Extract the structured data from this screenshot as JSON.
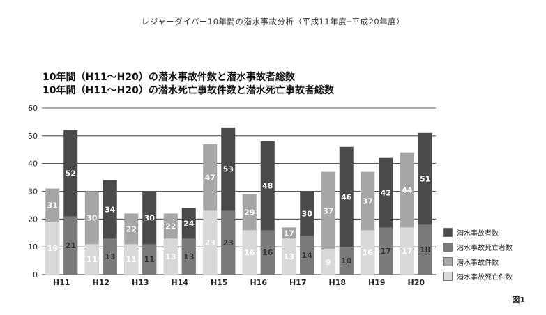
{
  "page": {
    "top_title": "レジャーダイバー10年間の潜水事故分析（平成11年度─平成20年度）",
    "heading_1": "10年間（H11～H20）の潜水事故件数と潜水事故者総数",
    "heading_2": "10年間（H11～H20）の潜水死亡事故件数と潜水死亡事故者総数",
    "figure_label": "図1"
  },
  "chart_data": {
    "type": "bar",
    "categories": [
      "H11",
      "H12",
      "H13",
      "H14",
      "H15",
      "H16",
      "H17",
      "H18",
      "H19",
      "H20"
    ],
    "ylim": [
      0,
      60
    ],
    "yticks": [
      0,
      10,
      20,
      30,
      40,
      50,
      60
    ],
    "grid": true,
    "legend_position": "right",
    "groups": [
      {
        "stack": [
          {
            "name": "潜水事故死亡件数",
            "color": "#d9d9d9",
            "values": [
              19,
              11,
              11,
              13,
              23,
              16,
              13,
              9,
              16,
              17
            ],
            "label_color": "#ffffff"
          },
          {
            "name": "潜水事故件数",
            "color": "#a6a6a6",
            "values": [
              31,
              30,
              22,
              22,
              47,
              29,
              17,
              37,
              37,
              44
            ],
            "label_color": "#ffffff",
            "total": true
          }
        ]
      },
      {
        "stack": [
          {
            "name": "潜水事故死亡者数",
            "color": "#7a7a7a",
            "values": [
              21,
              13,
              11,
              13,
              23,
              16,
              14,
              10,
              17,
              18
            ],
            "label_color": "#333333"
          },
          {
            "name": "潜水事故者数",
            "color": "#4a4a4a",
            "values": [
              52,
              34,
              30,
              24,
              53,
              48,
              30,
              46,
              42,
              51
            ],
            "label_color": "#ffffff",
            "total": true
          }
        ]
      }
    ],
    "legend": [
      {
        "name": "潜水事故者数",
        "color": "#4a4a4a"
      },
      {
        "name": "潜水事故死亡者数",
        "color": "#7a7a7a"
      },
      {
        "name": "潜水事故件数",
        "color": "#a6a6a6"
      },
      {
        "name": "潜水事故死亡件数",
        "color": "#d9d9d9"
      }
    ]
  }
}
